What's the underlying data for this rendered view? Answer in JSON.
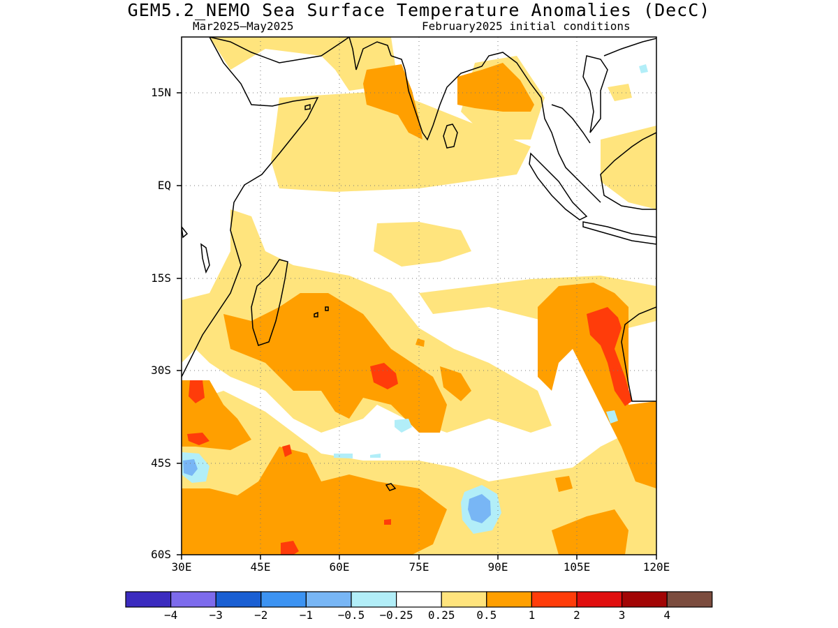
{
  "header": {
    "title": "GEM5.2_NEMO Sea Surface Temperature Anomalies (DecC)",
    "period": "Mar2025—May2025",
    "init": "February2025 initial conditions"
  },
  "axes": {
    "y_ticks": [
      "15N",
      "EQ",
      "15S",
      "30S",
      "45S",
      "60S"
    ],
    "x_ticks": [
      "30E",
      "45E",
      "60E",
      "75E",
      "90E",
      "105E",
      "120E"
    ],
    "lon_range": [
      30,
      120
    ],
    "lat_range": [
      -60,
      24
    ],
    "grid": "dotted"
  },
  "legend": {
    "colors": [
      "#3b2bbf",
      "#7d6bec",
      "#1a5fd3",
      "#3c93f2",
      "#78b6f5",
      "#b2eef8",
      "#ffffff",
      "#ffe47d",
      "#ff9f00",
      "#ff3c0a",
      "#e00e0e",
      "#a20505",
      "#7b4c3e"
    ],
    "labels": [
      "−4",
      "−3",
      "−2",
      "−1",
      "−0.5",
      "−0.25",
      "0.25",
      "0.5",
      "1",
      "2",
      "3",
      "4"
    ]
  },
  "map": {
    "region": "Indian Ocean",
    "variable": "sea surface temperature anomaly",
    "units": "DecC"
  }
}
